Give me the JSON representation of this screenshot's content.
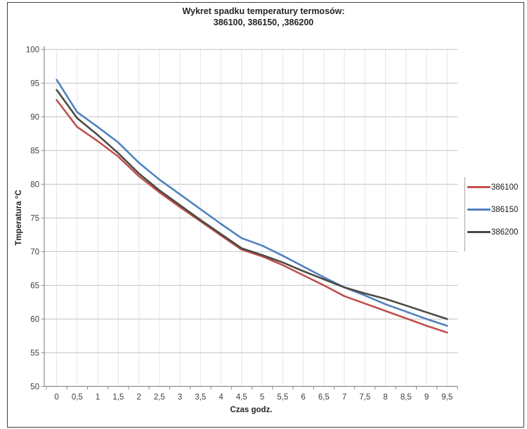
{
  "title": {
    "line1": "Wykret spadku temperatury termosów:",
    "line2": "386100, 386150, ,386200"
  },
  "chart_data": {
    "type": "line",
    "title": "Wykret spadku temperatury termosów: 386100, 386150, ,386200",
    "xlabel": "Czas godz.",
    "ylabel": "Tmperatura °C",
    "x": [
      0,
      0.5,
      1,
      1.5,
      2,
      2.5,
      3,
      3.5,
      4,
      4.5,
      5,
      5.5,
      6,
      6.5,
      7,
      7.5,
      8,
      8.5,
      9,
      9.5
    ],
    "x_tick_labels": [
      "0",
      "0,5",
      "1",
      "1,5",
      "2",
      "2,5",
      "3",
      "3,5",
      "4",
      "4,5",
      "5",
      "5,5",
      "6",
      "6,5",
      "7",
      "7,5",
      "8",
      "8,5",
      "9",
      "9,5"
    ],
    "ylim": [
      50,
      100
    ],
    "y_ticks": [
      50,
      55,
      60,
      65,
      70,
      75,
      80,
      85,
      90,
      95,
      100
    ],
    "grid": true,
    "legend_position": "right",
    "series": [
      {
        "name": "386100",
        "color": "#C0504D",
        "values": [
          92.5,
          88.5,
          86.4,
          84.1,
          81.2,
          78.8,
          76.6,
          74.5,
          72.4,
          70.3,
          69.3,
          68.0,
          66.5,
          65.0,
          63.4,
          62.3,
          61.2,
          60.1,
          59.0,
          58.0
        ]
      },
      {
        "name": "386150",
        "color": "#4F81BD",
        "values": [
          95.5,
          90.7,
          88.5,
          86.2,
          83.2,
          80.7,
          78.5,
          76.3,
          74.1,
          72.0,
          70.9,
          69.4,
          67.8,
          66.2,
          64.7,
          63.5,
          62.2,
          61.1,
          60.0,
          59.0
        ]
      },
      {
        "name": "386200",
        "color": "#4A4A42",
        "values": [
          94.0,
          89.8,
          87.3,
          84.6,
          81.6,
          79.1,
          76.9,
          74.7,
          72.6,
          70.5,
          69.5,
          68.4,
          67.1,
          65.9,
          64.7,
          63.8,
          63.0,
          62.0,
          61.0,
          60.0
        ]
      }
    ]
  },
  "colors": {
    "h_gridline": "#c3c3c3",
    "v_gridline": "#dde6f2",
    "axis": "#8c8c8c",
    "tick_label": "#404040",
    "legend_divider": "#a6a6a6"
  }
}
